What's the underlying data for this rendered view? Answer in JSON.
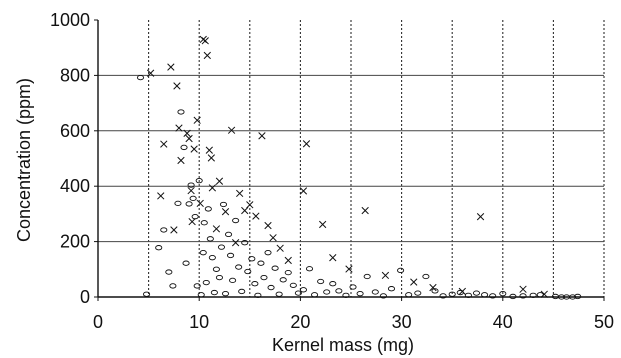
{
  "chart_data": {
    "type": "scatter",
    "title": "",
    "xlabel": "Kernel mass (mg)",
    "ylabel": "Concentration (ppm)",
    "xlim": [
      0,
      50
    ],
    "ylim": [
      0,
      1000
    ],
    "x_ticks": [
      0,
      10,
      20,
      30,
      40,
      50
    ],
    "y_ticks": [
      0,
      200,
      400,
      600,
      800,
      1000
    ],
    "x_tick_labels": [
      "0",
      "10",
      "20",
      "30",
      "40",
      "50"
    ],
    "y_tick_labels": [
      "0",
      "200",
      "400",
      "600",
      "800",
      "1000"
    ],
    "grid": {
      "vertical_lines": [
        5,
        10,
        15,
        20,
        25,
        30,
        35,
        40,
        45,
        50
      ],
      "horizontal_lines": [
        200,
        400,
        600,
        800
      ],
      "vertical_style": "dashed",
      "horizontal_style": "solid"
    },
    "legend": "none",
    "series": [
      {
        "marker": "x",
        "color": "#111111",
        "x": [
          5.2,
          6.2,
          6.5,
          7.2,
          7.5,
          7.8,
          8.0,
          8.2,
          8.8,
          9.0,
          9.2,
          9.3,
          9.5,
          9.8,
          10.1,
          10.4,
          10.6,
          10.8,
          11.0,
          11.2,
          11.3,
          11.7,
          12.0,
          12.6,
          13.2,
          13.6,
          14.0,
          14.5,
          15.0,
          15.6,
          16.2,
          16.8,
          17.3,
          18.0,
          18.8,
          20.3,
          20.6,
          22.2,
          23.2,
          24.8,
          26.4,
          28.4,
          31.2,
          33.1,
          36.0,
          37.8,
          42.0,
          44.1
        ],
        "y": [
          808,
          365,
          552,
          830,
          242,
          762,
          610,
          493,
          591,
          572,
          384,
          272,
          534,
          638,
          338,
          930,
          925,
          872,
          530,
          502,
          394,
          246,
          418,
          308,
          602,
          196,
          374,
          312,
          333,
          292,
          582,
          258,
          214,
          176,
          132,
          383,
          553,
          262,
          142,
          101,
          312,
          78,
          54,
          34,
          20,
          290,
          28,
          10
        ]
      },
      {
        "marker": "o",
        "color": "#111111",
        "x": [
          4.2,
          4.8,
          6.0,
          6.5,
          7.0,
          7.4,
          7.9,
          8.2,
          8.5,
          8.7,
          9.0,
          9.2,
          9.4,
          9.6,
          9.8,
          10.0,
          10.2,
          10.4,
          10.5,
          10.7,
          10.9,
          11.1,
          11.3,
          11.5,
          11.7,
          12.0,
          12.2,
          12.4,
          12.6,
          12.9,
          13.1,
          13.3,
          13.6,
          13.9,
          14.2,
          14.5,
          14.8,
          15.2,
          15.5,
          15.8,
          16.1,
          16.4,
          16.8,
          17.1,
          17.5,
          17.9,
          18.3,
          18.8,
          19.3,
          19.8,
          20.3,
          20.9,
          21.4,
          22.0,
          22.6,
          23.2,
          23.8,
          24.5,
          25.2,
          25.9,
          26.6,
          27.4,
          28.2,
          29.0,
          29.9,
          30.7,
          31.6,
          32.4,
          33.3,
          34.1,
          35.0,
          35.8,
          36.6,
          37.4,
          38.2,
          39.0,
          40.0,
          41.0,
          42.0,
          43.0,
          43.7,
          45.2,
          45.8,
          46.3,
          46.9,
          47.4
        ],
        "y": [
          792,
          10,
          178,
          242,
          90,
          40,
          338,
          668,
          540,
          122,
          336,
          404,
          356,
          290,
          40,
          420,
          8,
          160,
          268,
          52,
          318,
          210,
          142,
          16,
          100,
          70,
          180,
          334,
          12,
          226,
          150,
          60,
          276,
          108,
          20,
          196,
          92,
          138,
          48,
          6,
          122,
          70,
          160,
          34,
          104,
          10,
          62,
          88,
          42,
          14,
          26,
          102,
          8,
          56,
          18,
          48,
          22,
          6,
          36,
          12,
          74,
          18,
          4,
          30,
          96,
          8,
          14,
          74,
          22,
          4,
          10,
          16,
          6,
          14,
          8,
          4,
          12,
          2,
          4,
          6,
          8,
          2,
          0,
          0,
          0,
          2
        ]
      }
    ]
  }
}
